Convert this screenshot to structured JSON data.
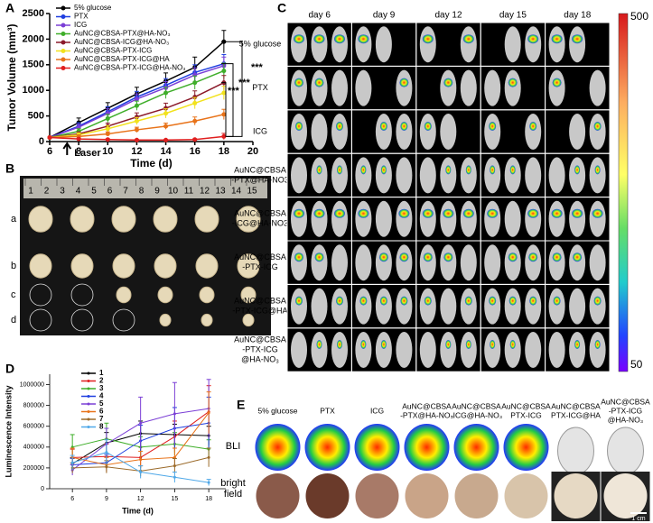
{
  "panel_labels": [
    "A",
    "B",
    "C",
    "D",
    "E"
  ],
  "chart_data": [
    {
      "type": "line",
      "x_label": "Time (d)",
      "y_label": "Tumor Volume (mm³)",
      "x": [
        6,
        8,
        10,
        12,
        14,
        16,
        18
      ],
      "xlim": [
        6,
        20
      ],
      "xticks": [
        6,
        8,
        10,
        12,
        14,
        16,
        18,
        20
      ],
      "ylim": [
        0,
        2500
      ],
      "yticks": [
        0,
        500,
        1000,
        1500,
        2000,
        2500
      ],
      "annotations": {
        "laser": "Laser",
        "significance": [
          "***",
          "***",
          "***"
        ]
      },
      "series": [
        {
          "name": "5% glucose",
          "color": "#000000",
          "values": [
            80,
            370,
            650,
            930,
            1180,
            1450,
            1950
          ],
          "errors": [
            0,
            90,
            110,
            130,
            160,
            200,
            220
          ]
        },
        {
          "name": "PTX",
          "color": "#1f3fe0",
          "values": [
            80,
            300,
            580,
            870,
            1100,
            1350,
            1520
          ],
          "errors": [
            0,
            70,
            100,
            110,
            130,
            150,
            180
          ]
        },
        {
          "name": "ICG",
          "color": "#7b3fd6",
          "values": [
            80,
            280,
            550,
            830,
            1050,
            1300,
            1480
          ],
          "errors": [
            0,
            60,
            90,
            100,
            120,
            140,
            170
          ]
        },
        {
          "name": "AuNC@CBSA-PTX@HA-NO₃",
          "color": "#3fae2a",
          "values": [
            80,
            200,
            450,
            700,
            950,
            1150,
            1380
          ],
          "errors": [
            0,
            50,
            80,
            90,
            110,
            130,
            150
          ]
        },
        {
          "name": "AuNC@CBSA-ICG@HA-NO₃",
          "color": "#8b1a2a",
          "values": [
            80,
            150,
            300,
            480,
            650,
            870,
            1150
          ],
          "errors": [
            0,
            40,
            60,
            80,
            100,
            120,
            140
          ]
        },
        {
          "name": "AuNC@CBSA-PTX-ICG",
          "color": "#f2e21c",
          "values": [
            80,
            130,
            250,
            400,
            550,
            750,
            950
          ],
          "errors": [
            0,
            40,
            60,
            70,
            90,
            110,
            130
          ]
        },
        {
          "name": "AuNC@CBSA-PTX-ICG@HA",
          "color": "#e8731a",
          "values": [
            80,
            100,
            150,
            230,
            300,
            400,
            530
          ],
          "errors": [
            0,
            30,
            40,
            50,
            60,
            80,
            100
          ]
        },
        {
          "name": "AuNC@CBSA-PTX-ICG@HA-NO₃",
          "color": "#e01f1f",
          "values": [
            80,
            50,
            40,
            30,
            30,
            40,
            100
          ],
          "errors": [
            0,
            15,
            15,
            10,
            10,
            15,
            60
          ]
        }
      ]
    },
    {
      "type": "line",
      "x_label": "Time (d)",
      "y_label": "Luminescence Intensity",
      "x": [
        6,
        9,
        12,
        15,
        18
      ],
      "xlim": [
        4,
        19.5
      ],
      "xticks": [
        6,
        9,
        12,
        15,
        18
      ],
      "ylim": [
        0,
        1100000
      ],
      "yticks": [
        0,
        200000,
        400000,
        600000,
        800000,
        1000000
      ],
      "series": [
        {
          "name": "1",
          "color": "#000000",
          "values": [
            240000,
            440000,
            530000,
            520000,
            510000
          ],
          "errors": [
            60000,
            100000,
            120000,
            100000,
            90000
          ]
        },
        {
          "name": "2",
          "color": "#e01f1f",
          "values": [
            300000,
            310000,
            300000,
            500000,
            740000
          ],
          "errors": [
            80000,
            120000,
            100000,
            150000,
            250000
          ]
        },
        {
          "name": "3",
          "color": "#3fae2a",
          "values": [
            400000,
            480000,
            400000,
            430000,
            380000
          ],
          "errors": [
            120000,
            150000,
            100000,
            110000,
            90000
          ]
        },
        {
          "name": "4",
          "color": "#1f3fe0",
          "values": [
            230000,
            250000,
            460000,
            580000,
            630000
          ],
          "errors": [
            60000,
            80000,
            150000,
            200000,
            250000
          ]
        },
        {
          "name": "5",
          "color": "#7b3fd6",
          "values": [
            180000,
            430000,
            630000,
            720000,
            770000
          ],
          "errors": [
            50000,
            150000,
            250000,
            300000,
            280000
          ]
        },
        {
          "name": "6",
          "color": "#e8731a",
          "values": [
            300000,
            230000,
            280000,
            300000,
            730000
          ],
          "errors": [
            90000,
            70000,
            80000,
            90000,
            200000
          ]
        },
        {
          "name": "7",
          "color": "#9b6a2a",
          "values": [
            200000,
            210000,
            170000,
            220000,
            300000
          ],
          "errors": [
            50000,
            60000,
            50000,
            70000,
            90000
          ]
        },
        {
          "name": "8",
          "color": "#4fa8e8",
          "values": [
            250000,
            350000,
            160000,
            110000,
            60000
          ],
          "errors": [
            70000,
            120000,
            60000,
            50000,
            30000
          ]
        }
      ]
    }
  ],
  "photo_b": {
    "ruler": [
      "1",
      "2",
      "3",
      "4",
      "5",
      "6",
      "7",
      "8",
      "9",
      "10",
      "11",
      "12",
      "13",
      "14",
      "15"
    ],
    "rows": [
      "a",
      "b",
      "c",
      "d"
    ]
  },
  "bli_c": {
    "days": [
      "day 6",
      "day 9",
      "day 12",
      "day 15",
      "day 18"
    ],
    "groups": [
      [
        "5% glucose"
      ],
      [
        "PTX"
      ],
      [
        "ICG"
      ],
      [
        "AuNC@CBSA",
        "-PTX@HA-NO3"
      ],
      [
        "AuNC@CBSA",
        "-ICG@HA-NO3"
      ],
      [
        "AuNC@CBSA",
        "-PTX-ICG"
      ],
      [
        "AuNC@CBSA",
        "-PTX-ICG@HA"
      ],
      [
        "AuNC@CBSA",
        "-PTX-ICG",
        "@HA-NO₃"
      ]
    ],
    "colorbar": {
      "max": 500,
      "min": 50
    }
  },
  "photo_e": {
    "groups": [
      [
        "5% glucose"
      ],
      [
        "PTX"
      ],
      [
        "ICG"
      ],
      [
        "AuNC@CBSA",
        "-PTX@HA-NO₃"
      ],
      [
        "AuNC@CBSA",
        "-ICG@HA-NO₃"
      ],
      [
        "AuNC@CBSA",
        "PTX-ICG"
      ],
      [
        "AuNC@CBSA",
        "PTX-ICG@HA"
      ],
      [
        "AuNC@CBSA",
        "-PTX-ICG",
        "@HA-NO₃"
      ]
    ],
    "rows": [
      [
        "BLI"
      ],
      [
        "bright",
        "field"
      ]
    ],
    "scale": "1 cm"
  }
}
